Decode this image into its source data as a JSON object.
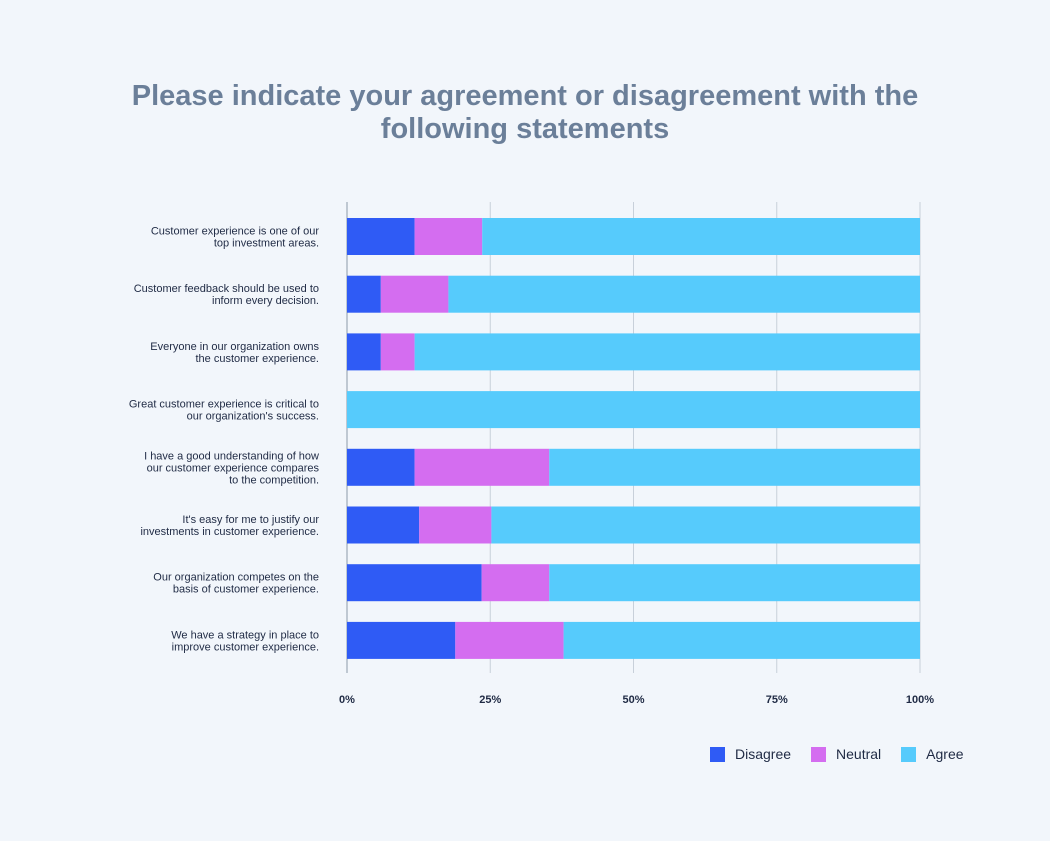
{
  "chart_data": {
    "type": "bar",
    "orientation": "horizontal",
    "stacked": true,
    "title": "Please indicate your agreement or disagreement with the following statements",
    "title_lines": [
      "Please indicate your agreement or disagreement with the",
      "following statements"
    ],
    "categories": [
      [
        "Customer experience is one of our",
        "top investment areas."
      ],
      [
        "Customer feedback should be used to",
        "inform every decision."
      ],
      [
        "Everyone in our organization owns",
        "the customer experience."
      ],
      [
        "Great customer experience is critical to",
        "our organization's success."
      ],
      [
        "I have a good understanding of how",
        "our customer experience compares",
        "to the competition."
      ],
      [
        "It's easy for me to justify our",
        "investments in customer experience."
      ],
      [
        "Our organization competes on the",
        "basis of customer experience."
      ],
      [
        "We have a strategy in place to",
        "improve customer experience."
      ]
    ],
    "series": [
      {
        "name": "Disagree",
        "color": "#2f5bf5",
        "values": [
          11.8,
          5.9,
          5.9,
          0,
          11.8,
          12.6,
          23.5,
          18.9
        ]
      },
      {
        "name": "Neutral",
        "color": "#d46df0",
        "values": [
          11.8,
          11.8,
          5.9,
          0,
          23.5,
          12.6,
          11.8,
          18.9
        ]
      },
      {
        "name": "Agree",
        "color": "#56cbfc",
        "values": [
          76.4,
          82.3,
          88.2,
          100,
          64.7,
          74.8,
          64.7,
          62.2
        ]
      }
    ],
    "xlim": [
      0,
      100
    ],
    "xticks": [
      0,
      25,
      50,
      75,
      100
    ],
    "xtick_labels": [
      "0%",
      "25%",
      "50%",
      "75%",
      "100%"
    ],
    "grid": true,
    "legend_position": "bottom-right",
    "colors": {
      "background": "#f2f6fb",
      "grid": "#c8d0da",
      "title": "#6b7f99",
      "text": "#1f2a44"
    }
  }
}
